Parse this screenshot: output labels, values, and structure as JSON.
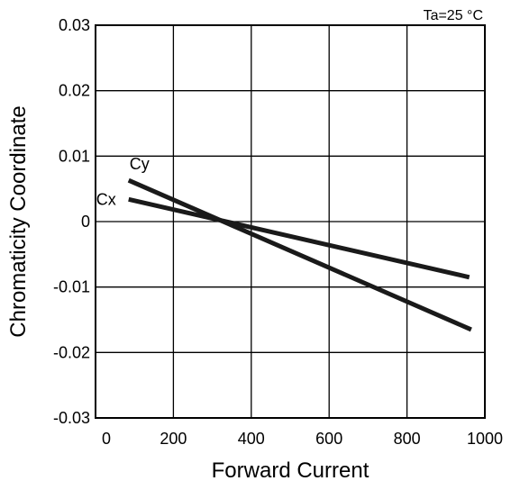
{
  "chart_data": {
    "type": "line",
    "annotation": "Ta=25 °C",
    "xlabel": "Forward Current",
    "ylabel": "Chromaticity Coordinate",
    "xlim": [
      0,
      1000
    ],
    "ylim": [
      -0.03,
      0.03
    ],
    "x_ticks": [
      "0",
      "200",
      "400",
      "600",
      "800",
      "1000"
    ],
    "y_ticks": [
      "0.03",
      "0.02",
      "0.01",
      "0",
      "-0.01",
      "-0.02",
      "-0.03"
    ],
    "grid": true,
    "series": [
      {
        "name": "Cy",
        "x": [
          85,
          965
        ],
        "y": [
          0.0063,
          -0.0165
        ]
      },
      {
        "name": "Cx",
        "x": [
          85,
          960
        ],
        "y": [
          0.0034,
          -0.0085
        ]
      }
    ]
  }
}
